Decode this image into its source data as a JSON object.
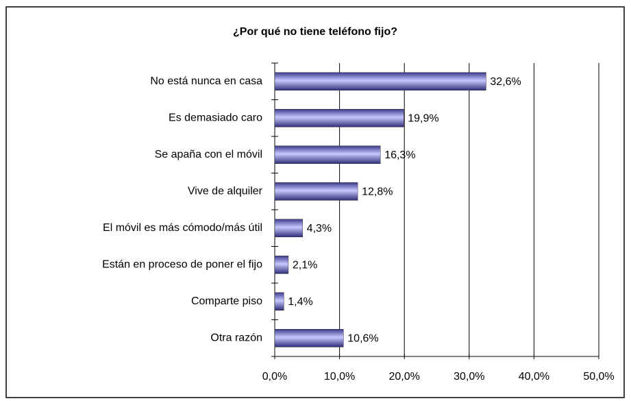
{
  "chart_data": {
    "type": "bar",
    "orientation": "horizontal",
    "title": "¿Por qué no tiene teléfono fijo?",
    "categories": [
      "No está nunca en casa",
      "Es demasiado caro",
      "Se apaña con el móvil",
      "Vive de alquiler",
      "El móvil es más cómodo/más útil",
      "Están en proceso de poner el fijo",
      "Comparte piso",
      "Otra razón"
    ],
    "values": [
      32.6,
      19.9,
      16.3,
      12.8,
      4.3,
      2.1,
      1.4,
      10.6
    ],
    "value_labels": [
      "32,6%",
      "19,9%",
      "16,3%",
      "12,8%",
      "4,3%",
      "2,1%",
      "1,4%",
      "10,6%"
    ],
    "color": "#9999ff",
    "xlim": [
      0,
      50
    ],
    "xticks": [
      {
        "value": 0,
        "label": "0,0%"
      },
      {
        "value": 10,
        "label": "10,0%"
      },
      {
        "value": 20,
        "label": "20,0%"
      },
      {
        "value": 30,
        "label": "30,0%"
      },
      {
        "value": 40,
        "label": "40,0%"
      },
      {
        "value": 50,
        "label": "50,0%"
      }
    ],
    "grid": true
  }
}
